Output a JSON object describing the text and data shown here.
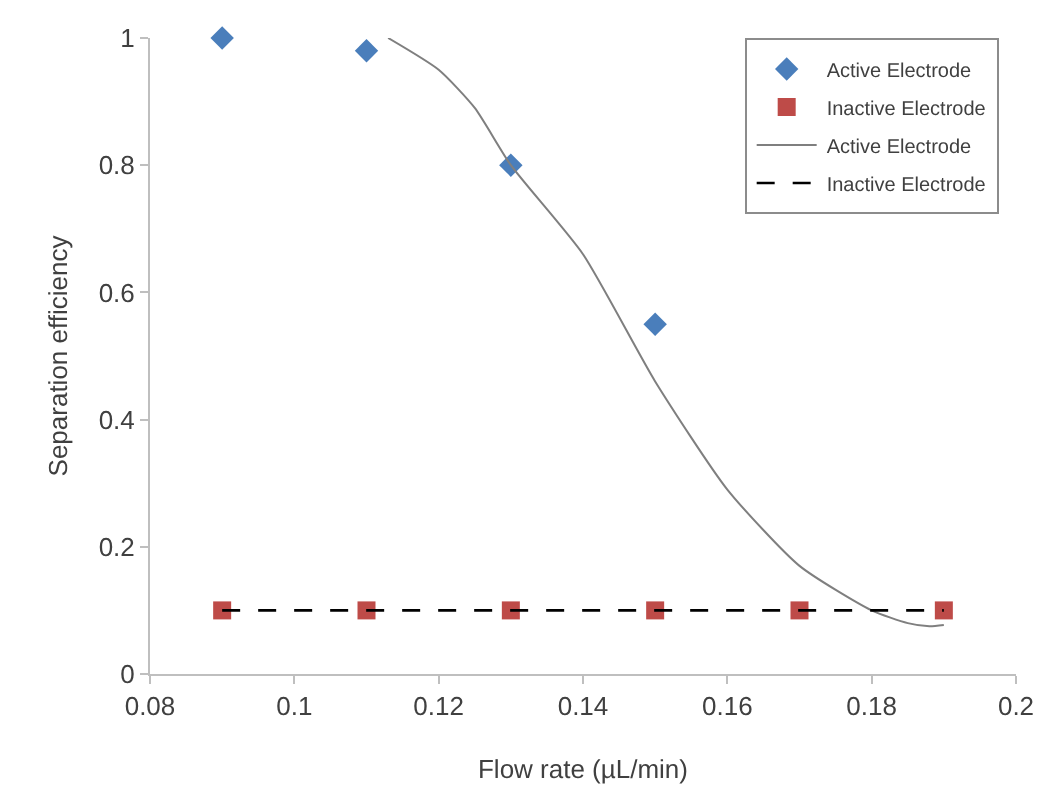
{
  "chart_data": {
    "type": "scatter",
    "xlabel": "Flow rate (µL/min)",
    "ylabel": "Separation efficiency",
    "xlim": [
      0.08,
      0.2
    ],
    "xticks": [
      0.08,
      0.1,
      0.12,
      0.14,
      0.16,
      0.18,
      0.2
    ],
    "ylim": [
      0,
      1
    ],
    "yticks": [
      0,
      0.2,
      0.4,
      0.6,
      0.8,
      1
    ],
    "legend": "top right",
    "series": [
      {
        "name": "Active Electrode",
        "marker": "diamond",
        "color": "#4a7ebb",
        "x": [
          0.09,
          0.11,
          0.13,
          0.15
        ],
        "values": [
          1.0,
          0.98,
          0.8,
          0.55
        ]
      },
      {
        "name": "Inactive Electrode",
        "marker": "square",
        "color": "#be4b48",
        "x": [
          0.09,
          0.11,
          0.13,
          0.15,
          0.17,
          0.19
        ],
        "values": [
          0.1,
          0.1,
          0.1,
          0.1,
          0.1,
          0.1
        ]
      },
      {
        "name": "Active Electrode",
        "type": "line",
        "line_style": "solid",
        "color": "#7f7f7f",
        "x": [
          0.113,
          0.12,
          0.125,
          0.13,
          0.14,
          0.15,
          0.16,
          0.17,
          0.18,
          0.185,
          0.188,
          0.19
        ],
        "values": [
          1.0,
          0.95,
          0.89,
          0.8,
          0.66,
          0.46,
          0.29,
          0.17,
          0.1,
          0.08,
          0.075,
          0.077
        ]
      },
      {
        "name": "Inactive Electrode",
        "type": "line",
        "line_style": "dashed",
        "color": "#000000",
        "x": [
          0.09,
          0.19
        ],
        "values": [
          0.1,
          0.1
        ]
      }
    ]
  }
}
